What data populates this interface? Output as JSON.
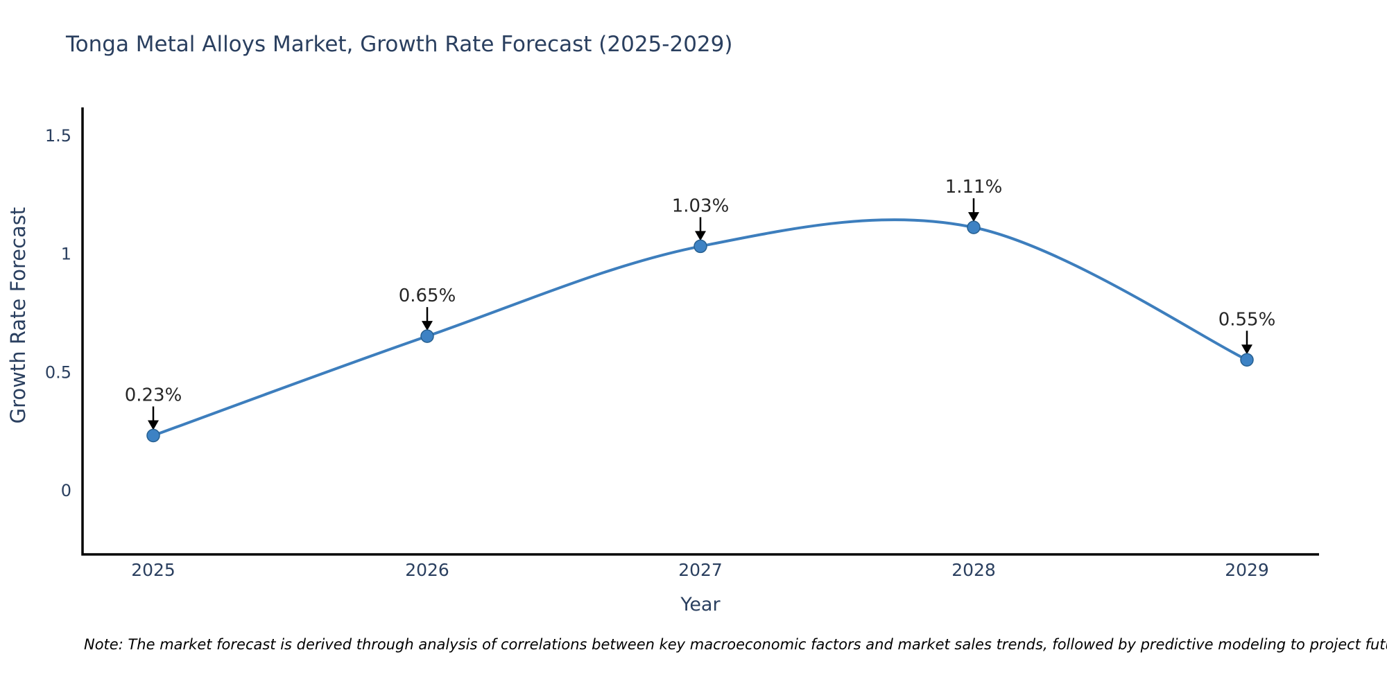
{
  "title": "Tonga Metal Alloys Market, Growth Rate Forecast (2025-2029)",
  "note": "Note: The market forecast is derived through analysis of correlations between key macroeconomic factors and market sales trends, followed by predictive modeling to project future sales",
  "chart_data": {
    "type": "line",
    "line_shape": "spline",
    "title": "Tonga Metal Alloys Market, Growth Rate Forecast (2025-2029)",
    "xlabel": "Year",
    "ylabel": "Growth Rate Forecast",
    "x": [
      "2025",
      "2026",
      "2027",
      "2028",
      "2029"
    ],
    "values": [
      0.23,
      0.65,
      1.03,
      1.11,
      0.55
    ],
    "labels": [
      "0.23%",
      "0.65%",
      "1.03%",
      "1.11%",
      "0.55%"
    ],
    "yticks": [
      {
        "value": 0,
        "label": "0"
      },
      {
        "value": 0.5,
        "label": "0.5"
      },
      {
        "value": 1,
        "label": "1"
      },
      {
        "value": 1.5,
        "label": "1.5"
      }
    ],
    "ylim": [
      -0.27,
      1.62
    ],
    "grid": false,
    "legend": "none",
    "colors": {
      "line": "#3d7ebd",
      "marker": "#3d82c4",
      "marker_edge": "#265f8f",
      "text": "#2a3f5f",
      "annotation": "#262626",
      "arrow": "#000000",
      "axis": "#000000"
    }
  }
}
